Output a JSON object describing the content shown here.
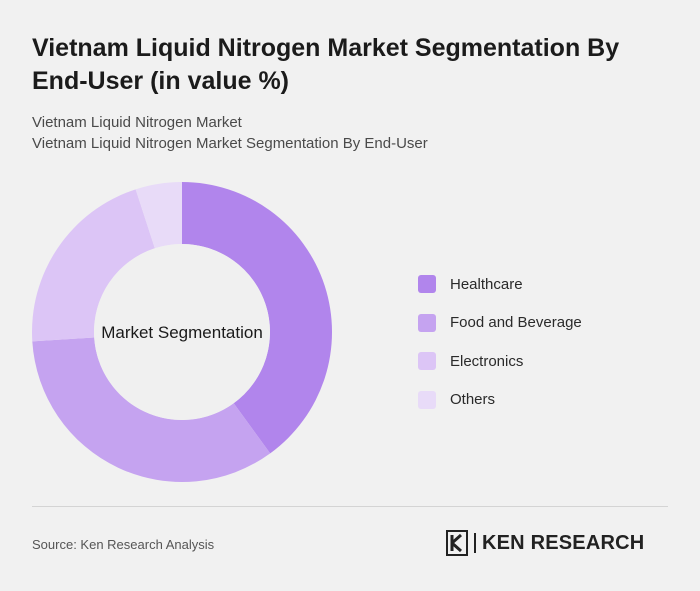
{
  "header": {
    "title": "Vietnam Liquid Nitrogen Market Segmentation By End-User (in value %)",
    "subtitle_line1": "Vietnam Liquid Nitrogen Market",
    "subtitle_line2": "Vietnam Liquid Nitrogen Market Segmentation By End-User"
  },
  "chart_data": {
    "type": "pie",
    "variant": "donut",
    "center_label": "Market Segmentation",
    "categories": [
      "Healthcare",
      "Food and Beverage",
      "Electronics",
      "Others"
    ],
    "values": [
      40,
      34,
      21,
      5
    ],
    "unit": "%",
    "colors": [
      "#b185ec",
      "#c5a3f0",
      "#dcc5f6",
      "#e8dbf8"
    ],
    "legend_position": "right"
  },
  "footer": {
    "source": "Source: Ken Research Analysis",
    "logo_text": "KEN RESEARCH",
    "logo_name": "ken-research-logo"
  },
  "colors": {
    "background": "#f1f1f1",
    "donut_hole": "#f0f0f0"
  }
}
